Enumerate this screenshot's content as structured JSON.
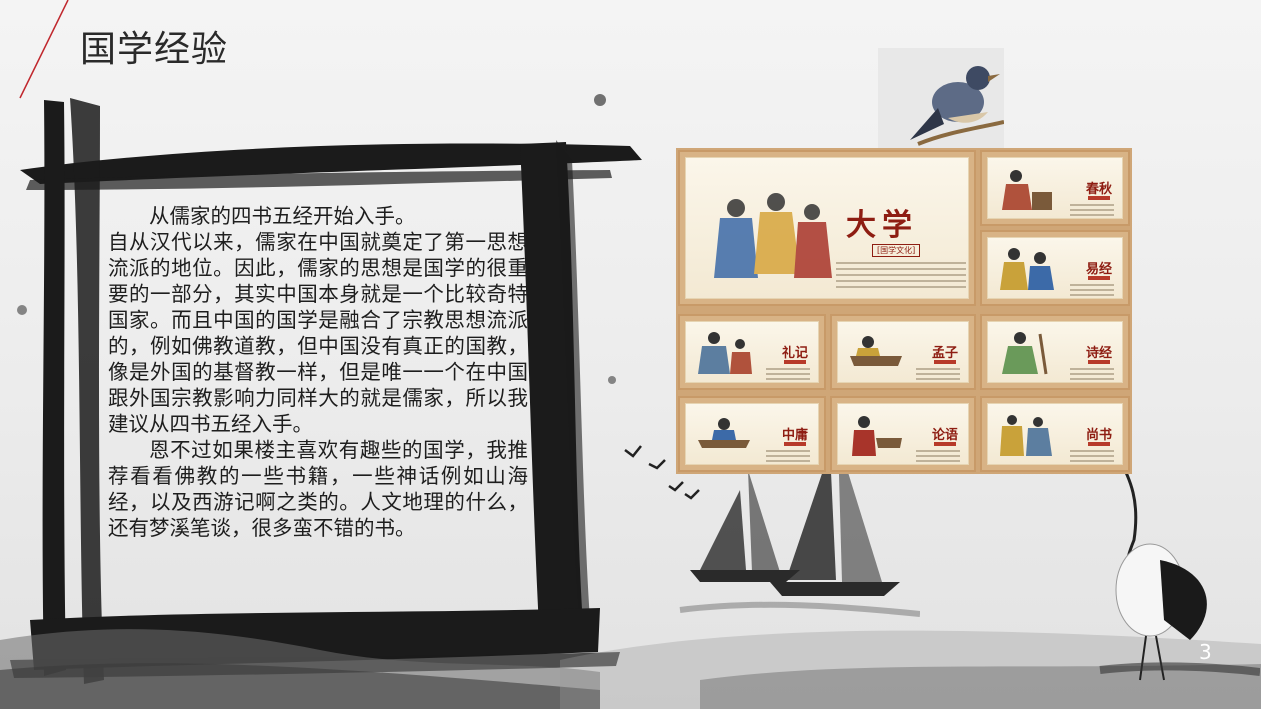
{
  "slide": {
    "title": "国学经验",
    "page_number": "3"
  },
  "body": {
    "paragraphs": [
      "从儒家的四书五经开始入手。",
      "自从汉代以来，儒家在中国就奠定了第一思想流派的地位。因此，儒家的思想是国学的很重要的一部分，其实中国本身就是一个比较奇特国家。而且中国的国学是融合了宗教思想流派的，例如佛教道教，但中国没有真正的国教，像是外国的基督教一样，但是唯一一个在中国跟外国宗教影响力同样大的就是儒家，所以我建议从四书五经入手。",
      "恩不过如果楼主喜欢有趣些的国学，我推荐看看佛教的一些书籍，一些神话例如山海经，以及西游记啊之类的。人文地理的什么，还有梦溪笔谈，很多蛮不错的书。"
    ]
  },
  "books": {
    "main": {
      "title": "大学",
      "badge": "[国学文化]"
    },
    "items": [
      "春秋",
      "易经",
      "礼记",
      "孟子",
      "诗经",
      "中庸",
      "论语",
      "尚书"
    ]
  },
  "colors": {
    "title_accent": "#c0272d",
    "book_title": "#8e1d12",
    "frame_wood": "#cfa677"
  }
}
